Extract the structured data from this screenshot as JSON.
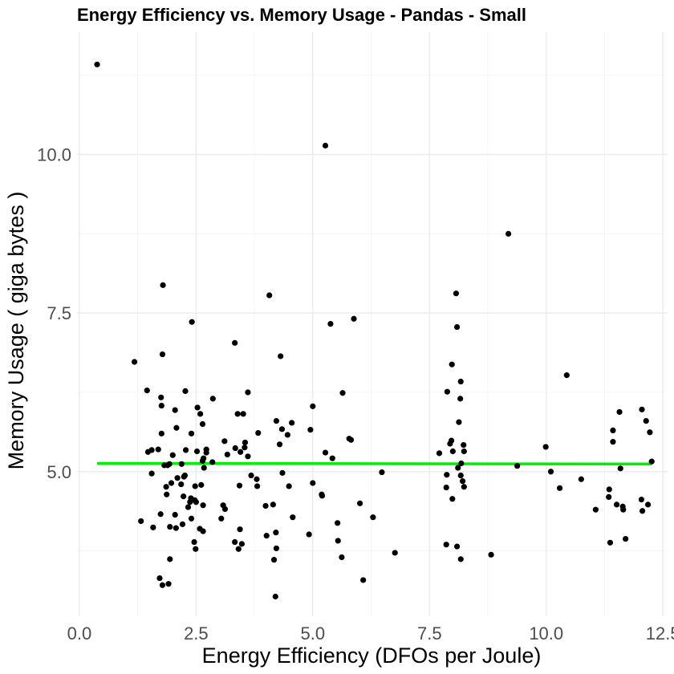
{
  "chart_data": {
    "type": "scatter",
    "title": "Energy Efficiency vs. Memory Usage  -  Pandas  -  Small",
    "xlabel": "Energy Efficiency (DFOs per Joule)",
    "ylabel": "Memory Usage ( giga bytes )",
    "xlim": [
      -0.05,
      12.6
    ],
    "ylim": [
      2.72,
      11.93
    ],
    "x_ticks": [
      0.0,
      2.5,
      5.0,
      7.5,
      10.0,
      12.5
    ],
    "x_tick_labels": [
      "0.0",
      "2.5",
      "5.0",
      "7.5",
      "10.0",
      "12.5"
    ],
    "y_ticks": [
      5.0,
      7.5,
      10.0
    ],
    "y_tick_labels": [
      "5.0",
      "7.5",
      "10.0"
    ],
    "grid": true,
    "point_color": "#000000",
    "trend_color": "#00ee00",
    "trend_line": {
      "x": [
        0.38,
        12.26
      ],
      "y": [
        5.13,
        5.12
      ]
    },
    "points": [
      [
        0.38,
        11.42
      ],
      [
        5.27,
        10.14
      ],
      [
        9.19,
        8.75
      ],
      [
        1.79,
        7.94
      ],
      [
        4.07,
        7.78
      ],
      [
        8.07,
        7.81
      ],
      [
        2.41,
        7.36
      ],
      [
        5.38,
        7.33
      ],
      [
        5.88,
        7.41
      ],
      [
        8.09,
        7.28
      ],
      [
        1.18,
        6.73
      ],
      [
        1.78,
        6.85
      ],
      [
        3.33,
        7.03
      ],
      [
        4.31,
        6.82
      ],
      [
        7.98,
        6.69
      ],
      [
        10.44,
        6.52
      ],
      [
        8.17,
        6.42
      ],
      [
        1.45,
        6.28
      ],
      [
        2.27,
        6.27
      ],
      [
        3.61,
        6.25
      ],
      [
        5.64,
        6.24
      ],
      [
        7.88,
        6.26
      ],
      [
        1.75,
        6.17
      ],
      [
        2.86,
        6.15
      ],
      [
        8.16,
        6.15
      ],
      [
        1.76,
        6.04
      ],
      [
        2.53,
        6.01
      ],
      [
        5.0,
        6.03
      ],
      [
        2.05,
        5.97
      ],
      [
        2.59,
        5.91
      ],
      [
        3.39,
        5.91
      ],
      [
        3.51,
        5.91
      ],
      [
        11.57,
        5.94
      ],
      [
        12.05,
        5.98
      ],
      [
        4.22,
        5.8
      ],
      [
        4.55,
        5.77
      ],
      [
        8.13,
        5.78
      ],
      [
        12.14,
        5.8
      ],
      [
        2.64,
        5.75
      ],
      [
        4.34,
        5.67
      ],
      [
        4.95,
        5.66
      ],
      [
        2.08,
        5.69
      ],
      [
        11.43,
        5.65
      ],
      [
        12.22,
        5.62
      ],
      [
        1.76,
        5.6
      ],
      [
        2.4,
        5.6
      ],
      [
        3.83,
        5.61
      ],
      [
        4.46,
        5.58
      ],
      [
        5.78,
        5.52
      ],
      [
        5.82,
        5.5
      ],
      [
        7.97,
        5.49
      ],
      [
        11.43,
        5.47
      ],
      [
        3.11,
        5.48
      ],
      [
        3.55,
        5.46
      ],
      [
        7.94,
        5.44
      ],
      [
        4.29,
        5.43
      ],
      [
        8.23,
        5.42
      ],
      [
        3.34,
        5.37
      ],
      [
        3.54,
        5.38
      ],
      [
        9.99,
        5.39
      ],
      [
        1.47,
        5.31
      ],
      [
        1.55,
        5.34
      ],
      [
        1.69,
        5.35
      ],
      [
        2.28,
        5.34
      ],
      [
        2.52,
        5.32
      ],
      [
        2.72,
        5.3
      ],
      [
        2.72,
        5.35
      ],
      [
        3.45,
        5.31
      ],
      [
        3.61,
        5.24
      ],
      [
        5.27,
        5.3
      ],
      [
        7.71,
        5.29
      ],
      [
        8.0,
        5.32
      ],
      [
        8.24,
        5.32
      ],
      [
        2.0,
        5.26
      ],
      [
        2.66,
        5.21
      ],
      [
        2.85,
        5.15
      ],
      [
        3.17,
        5.27
      ],
      [
        5.42,
        5.21
      ],
      [
        1.93,
        5.12
      ],
      [
        2.19,
        5.12
      ],
      [
        2.64,
        5.17
      ],
      [
        8.18,
        5.13
      ],
      [
        12.26,
        5.16
      ],
      [
        1.82,
        5.1
      ],
      [
        1.89,
        5.1
      ],
      [
        2.67,
        5.06
      ],
      [
        8.11,
        5.06
      ],
      [
        9.38,
        5.09
      ],
      [
        11.59,
        5.05
      ],
      [
        3.68,
        4.94
      ],
      [
        4.35,
        4.98
      ],
      [
        6.48,
        4.99
      ],
      [
        7.87,
        4.95
      ],
      [
        10.1,
        5.0
      ],
      [
        8.17,
        4.94
      ],
      [
        1.55,
        4.97
      ],
      [
        2.1,
        4.9
      ],
      [
        2.24,
        4.92
      ],
      [
        2.26,
        4.94
      ],
      [
        3.8,
        4.88
      ],
      [
        8.21,
        4.85
      ],
      [
        10.75,
        4.88
      ],
      [
        1.86,
        4.76
      ],
      [
        1.97,
        4.82
      ],
      [
        2.18,
        4.8
      ],
      [
        2.48,
        4.77
      ],
      [
        2.61,
        4.79
      ],
      [
        3.43,
        4.78
      ],
      [
        3.81,
        4.77
      ],
      [
        4.49,
        4.77
      ],
      [
        5.0,
        4.82
      ],
      [
        7.86,
        4.75
      ],
      [
        8.24,
        4.76
      ],
      [
        10.29,
        4.74
      ],
      [
        11.35,
        4.72
      ],
      [
        1.87,
        4.64
      ],
      [
        2.23,
        4.61
      ],
      [
        2.39,
        4.58
      ],
      [
        2.47,
        4.55
      ],
      [
        5.2,
        4.62
      ],
      [
        5.19,
        4.64
      ],
      [
        7.99,
        4.57
      ],
      [
        11.34,
        4.6
      ],
      [
        12.04,
        4.56
      ],
      [
        2.37,
        4.52
      ],
      [
        2.5,
        4.52
      ],
      [
        2.65,
        4.47
      ],
      [
        3.08,
        4.47
      ],
      [
        3.99,
        4.46
      ],
      [
        4.15,
        4.48
      ],
      [
        6.01,
        4.5
      ],
      [
        11.51,
        4.48
      ],
      [
        12.18,
        4.48
      ],
      [
        2.33,
        4.44
      ],
      [
        3.12,
        4.41
      ],
      [
        11.06,
        4.4
      ],
      [
        11.65,
        4.4
      ],
      [
        12.06,
        4.38
      ],
      [
        11.64,
        4.45
      ],
      [
        2.05,
        4.32
      ],
      [
        1.74,
        4.33
      ],
      [
        2.4,
        4.26
      ],
      [
        3.04,
        4.26
      ],
      [
        4.57,
        4.28
      ],
      [
        5.53,
        4.19
      ],
      [
        6.29,
        4.28
      ],
      [
        1.32,
        4.22
      ],
      [
        1.94,
        4.13
      ],
      [
        2.07,
        4.11
      ],
      [
        2.21,
        4.17
      ],
      [
        2.58,
        4.1
      ],
      [
        2.65,
        4.06
      ],
      [
        1.58,
        4.12
      ],
      [
        3.44,
        4.09
      ],
      [
        4.01,
        3.99
      ],
      [
        4.21,
        4.04
      ],
      [
        4.92,
        4.01
      ],
      [
        2.46,
        3.89
      ],
      [
        3.33,
        3.89
      ],
      [
        3.48,
        3.86
      ],
      [
        5.54,
        3.91
      ],
      [
        7.86,
        3.85
      ],
      [
        8.09,
        3.82
      ],
      [
        11.37,
        3.88
      ],
      [
        11.7,
        3.94
      ],
      [
        2.49,
        3.78
      ],
      [
        3.41,
        3.78
      ],
      [
        4.22,
        3.79
      ],
      [
        6.76,
        3.72
      ],
      [
        8.82,
        3.69
      ],
      [
        1.94,
        3.62
      ],
      [
        4.17,
        3.61
      ],
      [
        5.62,
        3.65
      ],
      [
        8.17,
        3.62
      ],
      [
        6.08,
        3.29
      ],
      [
        1.72,
        3.32
      ],
      [
        1.91,
        3.23
      ],
      [
        1.78,
        3.21
      ],
      [
        4.2,
        3.03
      ]
    ]
  }
}
